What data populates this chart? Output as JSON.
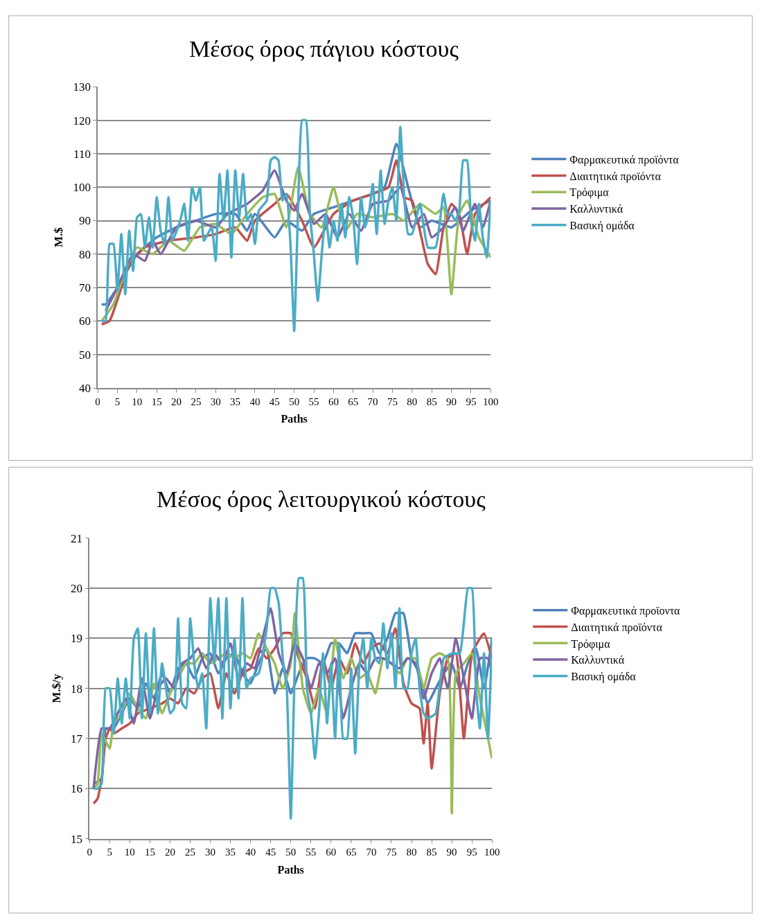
{
  "chart_data": [
    {
      "type": "line",
      "title": "Μέσος όρος πάγιου κόστους",
      "xlabel": "Paths",
      "ylabel": "M.$",
      "xlim": [
        0,
        100
      ],
      "xticks": [
        0,
        5,
        10,
        15,
        20,
        25,
        30,
        35,
        40,
        45,
        50,
        55,
        60,
        65,
        70,
        75,
        80,
        85,
        90,
        95,
        100
      ],
      "ylim": [
        40,
        130
      ],
      "yticks": [
        40,
        50,
        60,
        70,
        80,
        90,
        100,
        110,
        120,
        130
      ],
      "grid": "y",
      "legend": "right",
      "marker": "none",
      "line_style": "solid",
      "series": [
        {
          "name": "Φαρμακευτικά προϊόντα",
          "color": "#4f81bd",
          "x": [
            1,
            2,
            5,
            10,
            15,
            20,
            25,
            30,
            35,
            38,
            40,
            45,
            48,
            52,
            55,
            60,
            65,
            70,
            73,
            76,
            79,
            82,
            85,
            90,
            95,
            100
          ],
          "values": [
            65,
            65,
            70,
            80,
            85,
            88,
            90,
            92,
            92,
            87,
            92,
            85,
            90,
            87,
            92,
            94,
            96,
            98,
            100,
            113,
            100,
            88,
            90,
            88,
            93,
            96
          ]
        },
        {
          "name": "Διαιτητικά προϊόντα",
          "color": "#c0504d",
          "x": [
            1,
            3,
            6,
            8,
            12,
            18,
            25,
            30,
            35,
            38,
            40,
            45,
            48,
            52,
            55,
            60,
            65,
            70,
            74,
            76,
            78,
            80,
            82,
            84,
            86,
            88,
            90,
            92,
            94,
            96,
            100
          ],
          "values": [
            59,
            60,
            70,
            77,
            82,
            84,
            85,
            86,
            88,
            84,
            90,
            95,
            98,
            90,
            82,
            92,
            96,
            98,
            100,
            108,
            97,
            96,
            87,
            77,
            74,
            88,
            95,
            92,
            80,
            92,
            97
          ]
        },
        {
          "name": "Τρόφιμα",
          "color": "#9bbb59",
          "x": [
            1,
            4,
            7,
            10,
            14,
            18,
            22,
            26,
            30,
            34,
            38,
            42,
            45,
            48,
            51,
            54,
            57,
            60,
            63,
            66,
            70,
            75,
            78,
            82,
            86,
            88,
            90,
            92,
            94,
            97,
            100
          ],
          "values": [
            60,
            65,
            75,
            82,
            80,
            84,
            81,
            88,
            89,
            86,
            92,
            97,
            98,
            88,
            106,
            92,
            88,
            100,
            87,
            92,
            91,
            92,
            90,
            95,
            92,
            94,
            68,
            92,
            96,
            85,
            79
          ]
        },
        {
          "name": "Καλλυντικά",
          "color": "#8064a2",
          "x": [
            2,
            5,
            9,
            12,
            14,
            16,
            20,
            25,
            30,
            33,
            38,
            42,
            45,
            48,
            50,
            52,
            55,
            58,
            61,
            64,
            67,
            70,
            74,
            77,
            80,
            83,
            85,
            88,
            91,
            93,
            96,
            98,
            100
          ],
          "values": [
            63,
            70,
            80,
            78,
            84,
            80,
            88,
            90,
            88,
            92,
            95,
            99,
            105,
            96,
            93,
            98,
            89,
            92,
            85,
            92,
            87,
            95,
            96,
            100,
            88,
            92,
            85,
            88,
            94,
            87,
            95,
            88,
            96
          ]
        },
        {
          "name": "Βασική ομάδα",
          "color": "#4bacc6",
          "x": [
            1,
            2,
            3,
            4,
            5,
            6,
            7,
            8,
            9,
            10,
            11,
            12,
            13,
            14,
            15,
            16,
            17,
            18,
            19,
            21,
            22,
            23,
            24,
            25,
            26,
            27,
            29,
            30,
            31,
            32,
            33,
            34,
            35,
            36,
            37,
            38,
            39,
            40,
            41,
            43,
            44,
            45,
            46,
            47,
            48,
            49,
            50,
            51,
            52,
            53,
            54,
            55,
            56,
            57,
            58,
            59,
            60,
            61,
            62,
            63,
            64,
            65,
            66,
            67,
            68,
            69,
            70,
            71,
            72,
            73,
            74,
            75,
            76,
            77,
            78,
            79,
            80,
            82,
            84,
            86,
            88,
            89,
            90,
            91,
            92,
            93,
            94,
            95,
            96,
            97,
            98,
            99,
            100
          ],
          "values": [
            60,
            60,
            83,
            83,
            69,
            86,
            68,
            87,
            75,
            91,
            92,
            82,
            91,
            82,
            97,
            87,
            83,
            97,
            84,
            90,
            95,
            84,
            100,
            96,
            100,
            84,
            88,
            78,
            104,
            90,
            105,
            79,
            105,
            91,
            104,
            90,
            92,
            83,
            93,
            96,
            108,
            109,
            108,
            96,
            98,
            84,
            57,
            94,
            120,
            120,
            92,
            80,
            66,
            80,
            92,
            82,
            90,
            84,
            95,
            85,
            97,
            91,
            77,
            97,
            88,
            92,
            101,
            86,
            105,
            89,
            96,
            100,
            90,
            118,
            97,
            86,
            86,
            95,
            82,
            82,
            98,
            92,
            92,
            90,
            93,
            108,
            108,
            90,
            84,
            95,
            85,
            79,
            96
          ]
        }
      ]
    },
    {
      "type": "line",
      "title": "Μέσος όρος λειτουργικού κόστους",
      "xlabel": "Paths",
      "ylabel": "M.$/y",
      "xlim": [
        0,
        100
      ],
      "xticks": [
        0,
        5,
        10,
        15,
        20,
        25,
        30,
        35,
        40,
        45,
        50,
        55,
        60,
        65,
        70,
        75,
        80,
        85,
        90,
        95,
        100
      ],
      "ylim": [
        15,
        21
      ],
      "yticks": [
        15,
        16,
        17,
        18,
        19,
        20,
        21
      ],
      "grid": "y",
      "legend": "right",
      "marker": "none",
      "line_style": "solid",
      "series": [
        {
          "name": "Φαρμακευτικά προϊοντα",
          "color": "#4f81bd",
          "x": [
            1,
            3,
            4,
            6,
            8,
            10,
            12,
            14,
            16,
            18,
            20,
            22,
            24,
            26,
            28,
            30,
            32,
            34,
            36,
            38,
            40,
            42,
            44,
            46,
            48,
            50,
            52,
            54,
            56,
            58,
            60,
            62,
            64,
            66,
            68,
            70,
            72,
            74,
            76,
            78,
            80,
            82,
            84,
            86,
            88,
            90,
            92,
            94,
            96,
            98,
            100
          ],
          "values": [
            16.1,
            16.2,
            17.2,
            17.2,
            17.5,
            17.8,
            17.6,
            18.1,
            17.8,
            18.3,
            17.9,
            18.4,
            18.5,
            18.2,
            18.6,
            18.7,
            18.3,
            18.6,
            18.7,
            18.3,
            18.1,
            18.5,
            18.8,
            17.9,
            18.4,
            17.9,
            18.3,
            18.6,
            18.6,
            18.5,
            18.9,
            18.9,
            18.7,
            19.1,
            19.1,
            19.1,
            18.7,
            19.0,
            19.5,
            19.5,
            18.6,
            18.3,
            17.7,
            18.0,
            18.3,
            18.5,
            18.0,
            18.5,
            18.8,
            18.0,
            19.0
          ]
        },
        {
          "name": "Διαιτητικά προϊόντα",
          "color": "#c0504d",
          "x": [
            1,
            2,
            3,
            4,
            5,
            6,
            8,
            10,
            12,
            15,
            18,
            20,
            22,
            24,
            26,
            28,
            30,
            32,
            34,
            36,
            38,
            40,
            42,
            44,
            46,
            48,
            50,
            52,
            54,
            56,
            58,
            60,
            62,
            64,
            66,
            68,
            70,
            72,
            74,
            76,
            78,
            80,
            82,
            83,
            84,
            85,
            87,
            89,
            91,
            93,
            95,
            97,
            98,
            100
          ],
          "values": [
            15.7,
            15.8,
            16.2,
            17.0,
            17.2,
            17.1,
            17.2,
            17.3,
            17.5,
            17.6,
            17.7,
            17.8,
            17.7,
            18.0,
            17.9,
            18.2,
            18.3,
            17.6,
            18.3,
            17.9,
            18.3,
            18.4,
            18.8,
            18.6,
            18.8,
            19.1,
            19.1,
            18.6,
            18.2,
            17.6,
            18.6,
            18.0,
            18.6,
            18.3,
            18.9,
            18.5,
            18.8,
            18.9,
            18.7,
            19.2,
            18.1,
            17.7,
            17.6,
            16.9,
            17.7,
            16.4,
            17.9,
            18.6,
            18.7,
            17.0,
            18.7,
            19.0,
            19.1,
            18.6
          ]
        },
        {
          "name": "Τρόφιμα",
          "color": "#9bbb59",
          "x": [
            1,
            2,
            3,
            5,
            6,
            8,
            10,
            12,
            14,
            16,
            18,
            20,
            22,
            24,
            26,
            28,
            30,
            32,
            34,
            36,
            38,
            40,
            42,
            44,
            46,
            48,
            50,
            51,
            53,
            55,
            57,
            59,
            61,
            63,
            65,
            67,
            69,
            71,
            73,
            75,
            77,
            79,
            81,
            83,
            85,
            87,
            89,
            90,
            91,
            93,
            95,
            97,
            99,
            100
          ],
          "values": [
            16.0,
            16.1,
            17.1,
            16.8,
            17.3,
            17.5,
            17.9,
            17.6,
            17.4,
            18.1,
            17.5,
            17.9,
            18.2,
            18.5,
            18.5,
            18.7,
            18.5,
            18.6,
            18.7,
            18.6,
            18.7,
            18.6,
            19.1,
            18.8,
            18.5,
            18.0,
            18.5,
            19.5,
            18.0,
            17.5,
            18.0,
            17.5,
            19.0,
            18.2,
            18.6,
            18.2,
            18.3,
            17.9,
            18.6,
            18.5,
            18.3,
            18.6,
            18.6,
            18.0,
            18.6,
            18.7,
            18.6,
            15.5,
            18.3,
            18.5,
            18.7,
            17.8,
            17.0,
            16.6
          ]
        },
        {
          "name": "Καλλυντικά",
          "color": "#8064a2",
          "x": [
            1,
            3,
            5,
            7,
            9,
            11,
            13,
            15,
            17,
            19,
            21,
            23,
            25,
            27,
            29,
            31,
            33,
            35,
            37,
            39,
            41,
            43,
            45,
            47,
            49,
            51,
            53,
            55,
            57,
            59,
            61,
            63,
            65,
            67,
            69,
            71,
            73,
            75,
            77,
            79,
            81,
            83,
            85,
            87,
            89,
            91,
            93,
            95,
            97,
            99,
            100
          ],
          "values": [
            16.0,
            17.2,
            17.2,
            17.5,
            17.8,
            17.3,
            18.2,
            17.4,
            18.0,
            18.2,
            18.0,
            18.5,
            18.6,
            18.8,
            18.4,
            18.7,
            18.5,
            18.9,
            18.2,
            18.5,
            18.4,
            19.0,
            19.6,
            18.7,
            18.3,
            18.9,
            18.6,
            18.0,
            18.5,
            18.3,
            18.6,
            17.4,
            18.0,
            18.5,
            18.3,
            18.6,
            18.6,
            18.5,
            18.4,
            18.6,
            18.5,
            17.8,
            18.3,
            18.6,
            18.0,
            19.0,
            18.2,
            17.4,
            18.6,
            18.6,
            18.3
          ]
        },
        {
          "name": "Βασική ομάδα",
          "color": "#4bacc6",
          "x": [
            1,
            2,
            3,
            4,
            5,
            6,
            7,
            8,
            9,
            10,
            11,
            12,
            13,
            14,
            15,
            16,
            17,
            18,
            19,
            20,
            21,
            22,
            23,
            24,
            25,
            26,
            27,
            28,
            29,
            30,
            31,
            32,
            33,
            34,
            35,
            36,
            37,
            38,
            39,
            40,
            42,
            44,
            45,
            46,
            47,
            48,
            49,
            50,
            51,
            52,
            53,
            54,
            55,
            56,
            57,
            58,
            59,
            60,
            61,
            62,
            63,
            64,
            65,
            66,
            67,
            68,
            69,
            70,
            71,
            72,
            73,
            74,
            75,
            76,
            77,
            78,
            79,
            80,
            81,
            82,
            83,
            84,
            86,
            88,
            90,
            92,
            94,
            95,
            96,
            97,
            98,
            99,
            100
          ],
          "values": [
            16.0,
            16.0,
            16.1,
            18.0,
            18.0,
            17.1,
            18.2,
            17.3,
            18.2,
            17.4,
            19.0,
            19.2,
            17.4,
            19.1,
            17.5,
            19.2,
            17.5,
            18.5,
            18.0,
            17.5,
            17.6,
            19.4,
            17.7,
            17.6,
            19.4,
            18.5,
            18.0,
            18.3,
            17.2,
            19.8,
            18.5,
            19.8,
            17.4,
            19.8,
            17.6,
            19.0,
            17.8,
            19.8,
            18.0,
            18.2,
            18.3,
            19.2,
            20.0,
            20.0,
            19.7,
            18.6,
            18.0,
            15.4,
            18.5,
            20.2,
            20.2,
            18.0,
            17.5,
            16.6,
            17.5,
            18.7,
            17.3,
            18.5,
            17.0,
            18.9,
            17.0,
            17.0,
            18.4,
            16.7,
            18.4,
            19.0,
            18.0,
            19.0,
            18.6,
            18.5,
            19.3,
            18.4,
            19.1,
            18.0,
            19.6,
            18.0,
            18.0,
            18.7,
            19.0,
            18.0,
            17.5,
            17.4,
            17.5,
            18.6,
            18.7,
            18.7,
            20.0,
            20.0,
            18.0,
            17.2,
            18.7,
            17.0,
            19.0
          ]
        }
      ]
    }
  ]
}
